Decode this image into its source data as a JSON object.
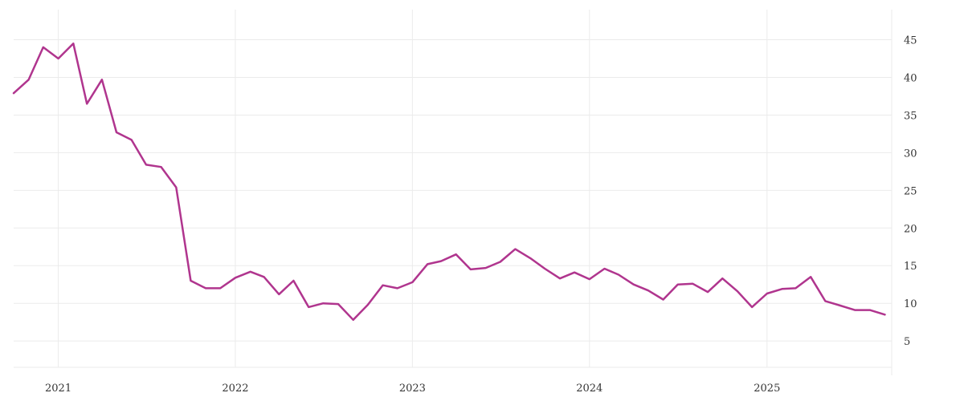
{
  "chart_data": {
    "type": "line",
    "title": "",
    "xlabel": "",
    "ylabel": "",
    "grid": true,
    "legend": "none",
    "color": "#b0358e",
    "xlim": [
      "2020-10-01",
      "2025-09-15"
    ],
    "ylim": [
      1.5,
      49
    ],
    "x_ticks": [
      "2021",
      "2022",
      "2023",
      "2024",
      "2025"
    ],
    "y_ticks": [
      5,
      10,
      15,
      20,
      25,
      30,
      35,
      40,
      45
    ],
    "series": [
      {
        "points": [
          [
            "2020-10-01",
            37.9
          ],
          [
            "2020-11-01",
            39.7
          ],
          [
            "2020-12-01",
            44.0
          ],
          [
            "2021-01-01",
            42.5
          ],
          [
            "2021-02-01",
            44.5
          ],
          [
            "2021-03-01",
            36.5
          ],
          [
            "2021-04-01",
            39.7
          ],
          [
            "2021-05-01",
            32.7
          ],
          [
            "2021-06-01",
            31.7
          ],
          [
            "2021-07-01",
            28.4
          ],
          [
            "2021-08-01",
            28.1
          ],
          [
            "2021-09-01",
            25.4
          ],
          [
            "2021-10-01",
            13.0
          ],
          [
            "2021-11-01",
            12.0
          ],
          [
            "2021-12-01",
            12.0
          ],
          [
            "2022-01-01",
            13.4
          ],
          [
            "2022-02-01",
            14.2
          ],
          [
            "2022-03-01",
            13.5
          ],
          [
            "2022-04-01",
            11.2
          ],
          [
            "2022-05-01",
            13.0
          ],
          [
            "2022-06-01",
            9.5
          ],
          [
            "2022-07-01",
            10.0
          ],
          [
            "2022-08-01",
            9.9
          ],
          [
            "2022-09-01",
            7.8
          ],
          [
            "2022-10-01",
            9.8
          ],
          [
            "2022-11-01",
            12.4
          ],
          [
            "2022-12-01",
            12.0
          ],
          [
            "2023-01-01",
            12.8
          ],
          [
            "2023-02-01",
            15.2
          ],
          [
            "2023-03-01",
            15.6
          ],
          [
            "2023-04-01",
            16.5
          ],
          [
            "2023-05-01",
            14.5
          ],
          [
            "2023-06-01",
            14.7
          ],
          [
            "2023-07-01",
            15.5
          ],
          [
            "2023-08-01",
            17.2
          ],
          [
            "2023-09-01",
            16.0
          ],
          [
            "2023-10-01",
            14.6
          ],
          [
            "2023-11-01",
            13.3
          ],
          [
            "2023-12-01",
            14.1
          ],
          [
            "2024-01-01",
            13.2
          ],
          [
            "2024-02-01",
            14.6
          ],
          [
            "2024-03-01",
            13.8
          ],
          [
            "2024-04-01",
            12.5
          ],
          [
            "2024-05-01",
            11.7
          ],
          [
            "2024-06-01",
            10.5
          ],
          [
            "2024-07-01",
            12.5
          ],
          [
            "2024-08-01",
            12.6
          ],
          [
            "2024-09-01",
            11.5
          ],
          [
            "2024-10-01",
            13.3
          ],
          [
            "2024-11-01",
            11.6
          ],
          [
            "2024-12-01",
            9.5
          ],
          [
            "2025-01-01",
            11.3
          ],
          [
            "2025-02-01",
            11.9
          ],
          [
            "2025-03-01",
            12.0
          ],
          [
            "2025-04-01",
            13.5
          ],
          [
            "2025-05-01",
            10.3
          ],
          [
            "2025-06-01",
            9.7
          ],
          [
            "2025-07-01",
            9.1
          ],
          [
            "2025-08-01",
            9.1
          ],
          [
            "2025-09-01",
            8.5
          ]
        ]
      }
    ]
  }
}
